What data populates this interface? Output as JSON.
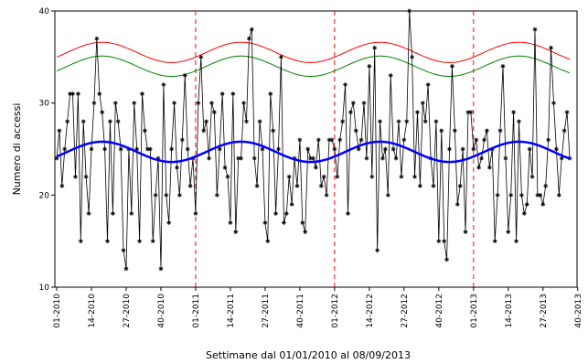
{
  "chart_data": {
    "type": "line",
    "xlabel": "Settimane dal 01/01/2010 al 08/09/2013",
    "ylabel": "Numero di accessi",
    "ylim": [
      10,
      40
    ],
    "yticks": [
      10,
      20,
      30,
      40
    ],
    "x_range": [
      1,
      193
    ],
    "x_ticks": [
      {
        "x": 1,
        "label": "01-2010"
      },
      {
        "x": 14,
        "label": "14-2010"
      },
      {
        "x": 27,
        "label": "27-2010"
      },
      {
        "x": 40,
        "label": "40-2010"
      },
      {
        "x": 53,
        "label": "01-2011"
      },
      {
        "x": 66,
        "label": "14-2011"
      },
      {
        "x": 79,
        "label": "27-2011"
      },
      {
        "x": 92,
        "label": "40-2011"
      },
      {
        "x": 105,
        "label": "01-2012"
      },
      {
        "x": 118,
        "label": "14-2012"
      },
      {
        "x": 131,
        "label": "27-2012"
      },
      {
        "x": 144,
        "label": "40-2012"
      },
      {
        "x": 157,
        "label": "01-2013"
      },
      {
        "x": 170,
        "label": "14-2013"
      },
      {
        "x": 183,
        "label": "27-2013"
      },
      {
        "x": 196,
        "label": "40-2013"
      }
    ],
    "year_boundaries": [
      53,
      105,
      157
    ],
    "colors": {
      "observed": "#000000",
      "expected": "#0000ff",
      "threshold_upper": "#ff0000",
      "threshold_lower": "#008000",
      "year_boundary": "#ff0000"
    },
    "series": [
      {
        "values": [
          24,
          27,
          21,
          25,
          28,
          31,
          31,
          22,
          31,
          15,
          28,
          22,
          18,
          25,
          30,
          37,
          31,
          29,
          25,
          15,
          28,
          18,
          30,
          28,
          25,
          14,
          12,
          25,
          18,
          30,
          25,
          15,
          31,
          27,
          25,
          25,
          15,
          20,
          24,
          12,
          32,
          20,
          17,
          25,
          30,
          23,
          20,
          26,
          33,
          25,
          21,
          24,
          18,
          30,
          35,
          27,
          28,
          24,
          30,
          29,
          20,
          25,
          31,
          23,
          22,
          17,
          31,
          16,
          24,
          24,
          30,
          28,
          37,
          38,
          24,
          21,
          28,
          25,
          17,
          15,
          31,
          27,
          18,
          25,
          35,
          17,
          18,
          22,
          19,
          24,
          21,
          26,
          17,
          16,
          25,
          24,
          24,
          23,
          26,
          21,
          22,
          20,
          26,
          26,
          25,
          22,
          26,
          28,
          32,
          18,
          29,
          30,
          27,
          25,
          26,
          30,
          24,
          34,
          22,
          36,
          14,
          28,
          24,
          25,
          20,
          33,
          25,
          24,
          28,
          22,
          26,
          28,
          40,
          35,
          22,
          29,
          21,
          30,
          28,
          32,
          24,
          21,
          28,
          15,
          27,
          15,
          13,
          25,
          34,
          27,
          19,
          21,
          25,
          16,
          29,
          29,
          25,
          26,
          23,
          24,
          26,
          27,
          23,
          25,
          15,
          20,
          27,
          34,
          24,
          16,
          20,
          29,
          15,
          28,
          20,
          18,
          19,
          25,
          22,
          38,
          20,
          20,
          19,
          21,
          26,
          36,
          30,
          25,
          20,
          24,
          27,
          29,
          24
        ]
      },
      {
        "mean": 24.7,
        "amplitude": 1.1,
        "peak_x": 18,
        "period": 52
      },
      {
        "mean": 35.5,
        "amplitude": 1.1,
        "peak_x": 18,
        "period": 52
      },
      {
        "mean": 34.0,
        "amplitude": 1.1,
        "peak_x": 18,
        "period": 52
      }
    ]
  }
}
